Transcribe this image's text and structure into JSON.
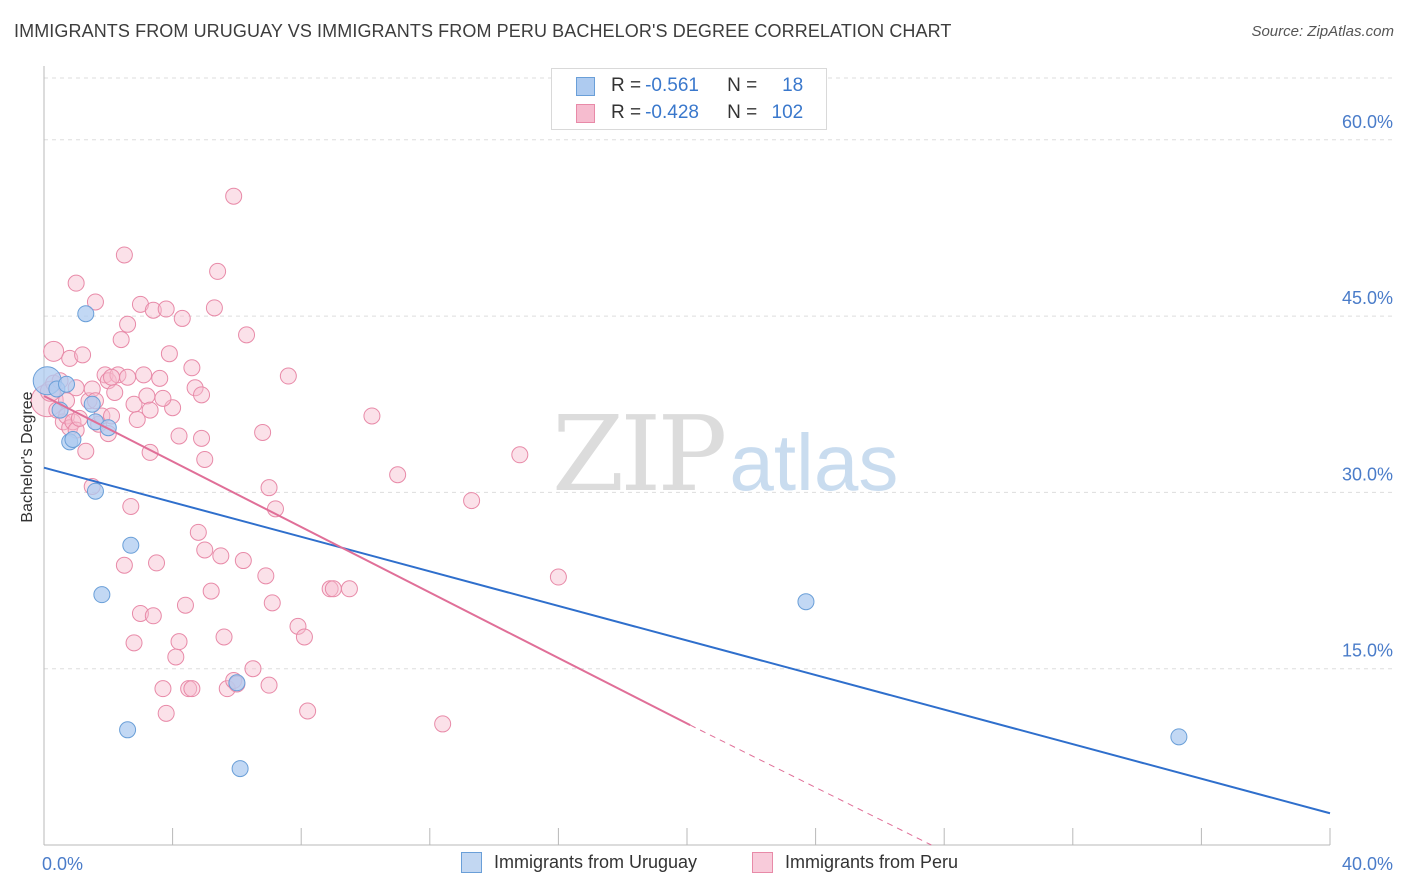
{
  "header": {
    "title": "IMMIGRANTS FROM URUGUAY VS IMMIGRANTS FROM PERU BACHELOR'S DEGREE CORRELATION CHART",
    "source": "Source: ZipAtlas.com"
  },
  "watermark": {
    "zip": "ZIP",
    "atlas": "atlas"
  },
  "colors": {
    "uruguay_fill": "#aecbf0",
    "uruguay_stroke": "#6a9fd8",
    "uruguay_line": "#2f6fcc",
    "peru_fill": "#f6bccf",
    "peru_stroke": "#e88aa8",
    "peru_line": "#e06f98",
    "tick_label": "#4a7cc9",
    "grid": "#dddddd"
  },
  "stats": {
    "uruguay": {
      "r_label": "R =",
      "r_value": "-0.561",
      "n_label": "N =",
      "n_value": "18"
    },
    "peru": {
      "r_label": "R =",
      "r_value": "-0.428",
      "n_label": "N =",
      "n_value": "102"
    }
  },
  "legend": {
    "uruguay": "Immigrants from Uruguay",
    "peru": "Immigrants from Peru"
  },
  "chart_data": {
    "type": "scatter",
    "title": "IMMIGRANTS FROM URUGUAY VS IMMIGRANTS FROM PERU BACHELOR'S DEGREE CORRELATION CHART",
    "xlabel": "",
    "ylabel": "Bachelor's Degree",
    "xlim": [
      0,
      40
    ],
    "ylim": [
      0,
      65
    ],
    "x_tick_labels": [
      {
        "value": 0,
        "label": "0.0%"
      },
      {
        "value": 40,
        "label": "40.0%"
      }
    ],
    "y_tick_labels": [
      {
        "value": 15,
        "label": "15.0%"
      },
      {
        "value": 30,
        "label": "30.0%"
      },
      {
        "value": 45,
        "label": "45.0%"
      },
      {
        "value": 60,
        "label": "60.0%"
      }
    ],
    "grid": true,
    "series": [
      {
        "name": "Immigrants from Uruguay",
        "points": [
          [
            0.1,
            39.5,
            14
          ],
          [
            0.4,
            38.8,
            8
          ],
          [
            0.5,
            37.0,
            8
          ],
          [
            0.7,
            39.2,
            8
          ],
          [
            0.8,
            34.3,
            8
          ],
          [
            0.9,
            34.5,
            8
          ],
          [
            1.3,
            45.2,
            8
          ],
          [
            1.5,
            37.5,
            8
          ],
          [
            1.6,
            36.0,
            8
          ],
          [
            1.6,
            30.1,
            8
          ],
          [
            1.8,
            21.3,
            8
          ],
          [
            2.0,
            35.5,
            8
          ],
          [
            2.6,
            9.8,
            8
          ],
          [
            2.7,
            25.5,
            8
          ],
          [
            6.0,
            13.8,
            8
          ],
          [
            6.1,
            6.5,
            8
          ],
          [
            23.7,
            20.7,
            8
          ],
          [
            35.3,
            9.2,
            8
          ]
        ],
        "trend": {
          "x0": 0,
          "y0": 32.1,
          "x1": 40,
          "y1": 2.7
        }
      },
      {
        "name": "Immigrants from Peru",
        "points": [
          [
            0.1,
            37.8,
            16
          ],
          [
            0.2,
            38.6,
            10
          ],
          [
            0.3,
            42.0,
            10
          ],
          [
            0.3,
            39.3,
            8
          ],
          [
            0.4,
            37.0,
            8
          ],
          [
            0.5,
            39.5,
            8
          ],
          [
            0.6,
            36.0,
            8
          ],
          [
            0.7,
            37.8,
            8
          ],
          [
            0.7,
            36.5,
            8
          ],
          [
            0.8,
            35.5,
            8
          ],
          [
            0.8,
            41.4,
            8
          ],
          [
            0.9,
            36.0,
            8
          ],
          [
            1.0,
            47.8,
            8
          ],
          [
            1.0,
            35.3,
            8
          ],
          [
            1.1,
            36.3,
            8
          ],
          [
            1.2,
            41.7,
            8
          ],
          [
            1.3,
            33.5,
            8
          ],
          [
            1.4,
            37.8,
            8
          ],
          [
            1.5,
            30.5,
            8
          ],
          [
            1.5,
            38.8,
            8
          ],
          [
            1.6,
            46.2,
            8
          ],
          [
            1.6,
            37.8,
            8
          ],
          [
            1.7,
            35.8,
            8
          ],
          [
            1.8,
            36.5,
            8
          ],
          [
            1.9,
            40.0,
            8
          ],
          [
            2.0,
            39.5,
            8
          ],
          [
            2.0,
            35.0,
            8
          ],
          [
            2.1,
            36.5,
            8
          ],
          [
            2.2,
            38.5,
            8
          ],
          [
            2.3,
            40.0,
            8
          ],
          [
            2.4,
            43.0,
            8
          ],
          [
            2.5,
            23.8,
            8
          ],
          [
            2.5,
            50.2,
            8
          ],
          [
            2.6,
            44.3,
            8
          ],
          [
            2.6,
            39.8,
            8
          ],
          [
            2.7,
            28.8,
            8
          ],
          [
            2.8,
            37.5,
            8
          ],
          [
            2.8,
            17.2,
            8
          ],
          [
            2.9,
            36.2,
            8
          ],
          [
            3.0,
            46.0,
            8
          ],
          [
            3.0,
            19.7,
            8
          ],
          [
            3.1,
            40.0,
            8
          ],
          [
            3.2,
            38.2,
            8
          ],
          [
            3.3,
            33.4,
            8
          ],
          [
            3.3,
            37.0,
            8
          ],
          [
            3.4,
            45.5,
            8
          ],
          [
            3.4,
            19.5,
            8
          ],
          [
            3.5,
            24.0,
            8
          ],
          [
            3.6,
            39.7,
            8
          ],
          [
            3.7,
            13.3,
            8
          ],
          [
            3.8,
            45.6,
            8
          ],
          [
            3.8,
            11.2,
            8
          ],
          [
            3.9,
            41.8,
            8
          ],
          [
            4.0,
            37.2,
            8
          ],
          [
            4.1,
            16.0,
            8
          ],
          [
            4.2,
            17.3,
            8
          ],
          [
            4.2,
            34.8,
            8
          ],
          [
            4.3,
            44.8,
            8
          ],
          [
            4.4,
            20.4,
            8
          ],
          [
            4.5,
            13.3,
            8
          ],
          [
            4.6,
            13.3,
            8
          ],
          [
            4.6,
            40.6,
            8
          ],
          [
            4.7,
            38.9,
            8
          ],
          [
            4.8,
            26.6,
            8
          ],
          [
            4.9,
            38.3,
            8
          ],
          [
            4.9,
            34.6,
            8
          ],
          [
            5.0,
            32.8,
            8
          ],
          [
            5.0,
            25.1,
            8
          ],
          [
            5.2,
            21.6,
            8
          ],
          [
            5.3,
            45.7,
            8
          ],
          [
            5.4,
            48.8,
            8
          ],
          [
            5.5,
            24.6,
            8
          ],
          [
            5.6,
            17.7,
            8
          ],
          [
            5.7,
            13.3,
            8
          ],
          [
            5.9,
            55.2,
            8
          ],
          [
            5.9,
            14.0,
            8
          ],
          [
            6.0,
            13.7,
            8
          ],
          [
            6.2,
            24.2,
            8
          ],
          [
            6.3,
            43.4,
            8
          ],
          [
            6.5,
            15.0,
            8
          ],
          [
            6.8,
            35.1,
            8
          ],
          [
            6.9,
            22.9,
            8
          ],
          [
            7.0,
            30.4,
            8
          ],
          [
            7.0,
            13.6,
            8
          ],
          [
            7.1,
            20.6,
            8
          ],
          [
            7.2,
            28.6,
            8
          ],
          [
            7.6,
            39.9,
            8
          ],
          [
            7.9,
            18.6,
            8
          ],
          [
            8.1,
            17.7,
            8
          ],
          [
            8.2,
            11.4,
            8
          ],
          [
            8.9,
            21.8,
            8
          ],
          [
            9.0,
            21.8,
            8
          ],
          [
            9.5,
            21.8,
            8
          ],
          [
            10.2,
            36.5,
            8
          ],
          [
            11.0,
            31.5,
            8
          ],
          [
            12.4,
            10.3,
            8
          ],
          [
            13.3,
            29.3,
            8
          ],
          [
            14.8,
            33.2,
            8
          ],
          [
            16.0,
            22.8,
            8
          ],
          [
            2.1,
            39.8,
            8
          ],
          [
            3.7,
            38.0,
            8
          ],
          [
            1.0,
            38.9,
            8
          ]
        ],
        "trend": {
          "x0": 0,
          "y0": 38.2,
          "x1": 20.1,
          "y1": 10.2
        },
        "trend_dashed": {
          "x0": 20.1,
          "y0": 10.2,
          "x1": 27.6,
          "y1": 0
        }
      }
    ]
  }
}
